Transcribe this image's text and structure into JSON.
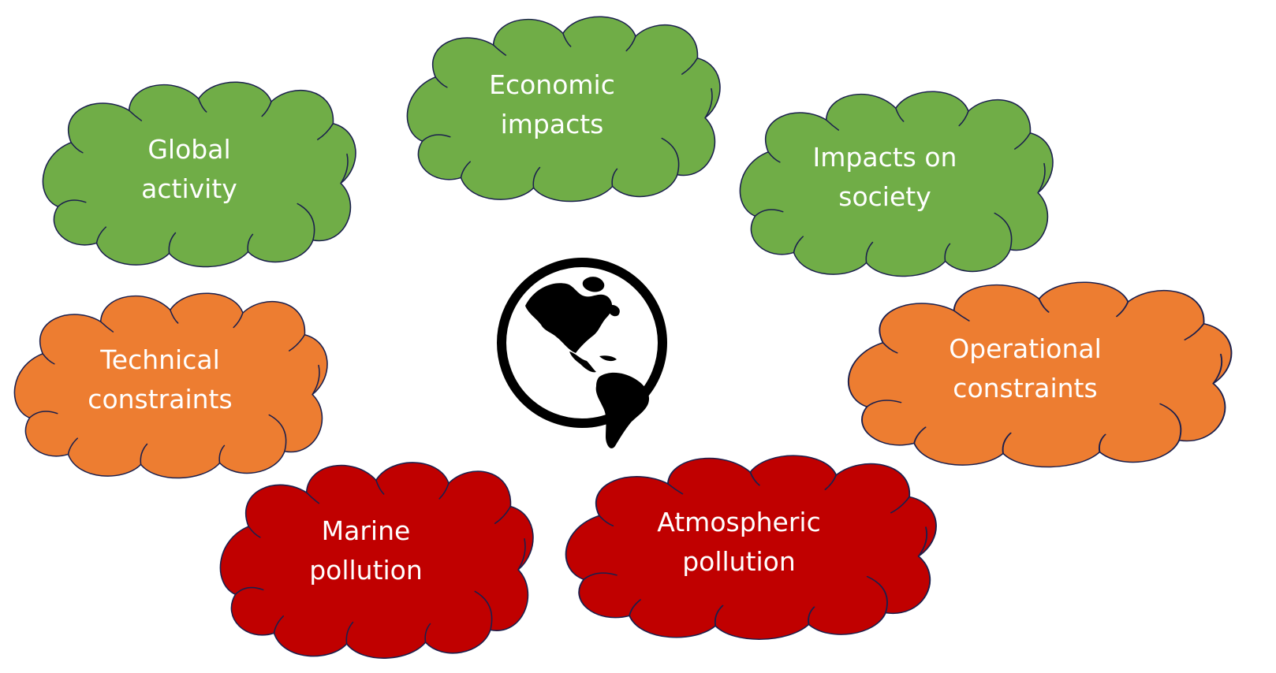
{
  "diagram": {
    "center_icon": "globe-americas-icon",
    "colors": {
      "green": "#70ad47",
      "orange": "#ed7d31",
      "red": "#c00000",
      "outline": "#1a1f4d",
      "label": "#ffffff",
      "globe": "#000000"
    },
    "clouds": [
      {
        "id": "global-activity",
        "color": "green",
        "lines": [
          "Global",
          "activity"
        ]
      },
      {
        "id": "economic-impacts",
        "color": "green",
        "lines": [
          "Economic",
          "impacts"
        ]
      },
      {
        "id": "impacts-on-society",
        "color": "green",
        "lines": [
          "Impacts on",
          "society"
        ]
      },
      {
        "id": "technical-constraints",
        "color": "orange",
        "lines": [
          "Technical",
          "constraints"
        ]
      },
      {
        "id": "operational-constraints",
        "color": "orange",
        "lines": [
          "Operational",
          "constraints"
        ]
      },
      {
        "id": "marine-pollution",
        "color": "red",
        "lines": [
          "Marine",
          "pollution"
        ]
      },
      {
        "id": "atmospheric-pollution",
        "color": "red",
        "lines": [
          "Atmospheric",
          "pollution"
        ]
      }
    ]
  }
}
